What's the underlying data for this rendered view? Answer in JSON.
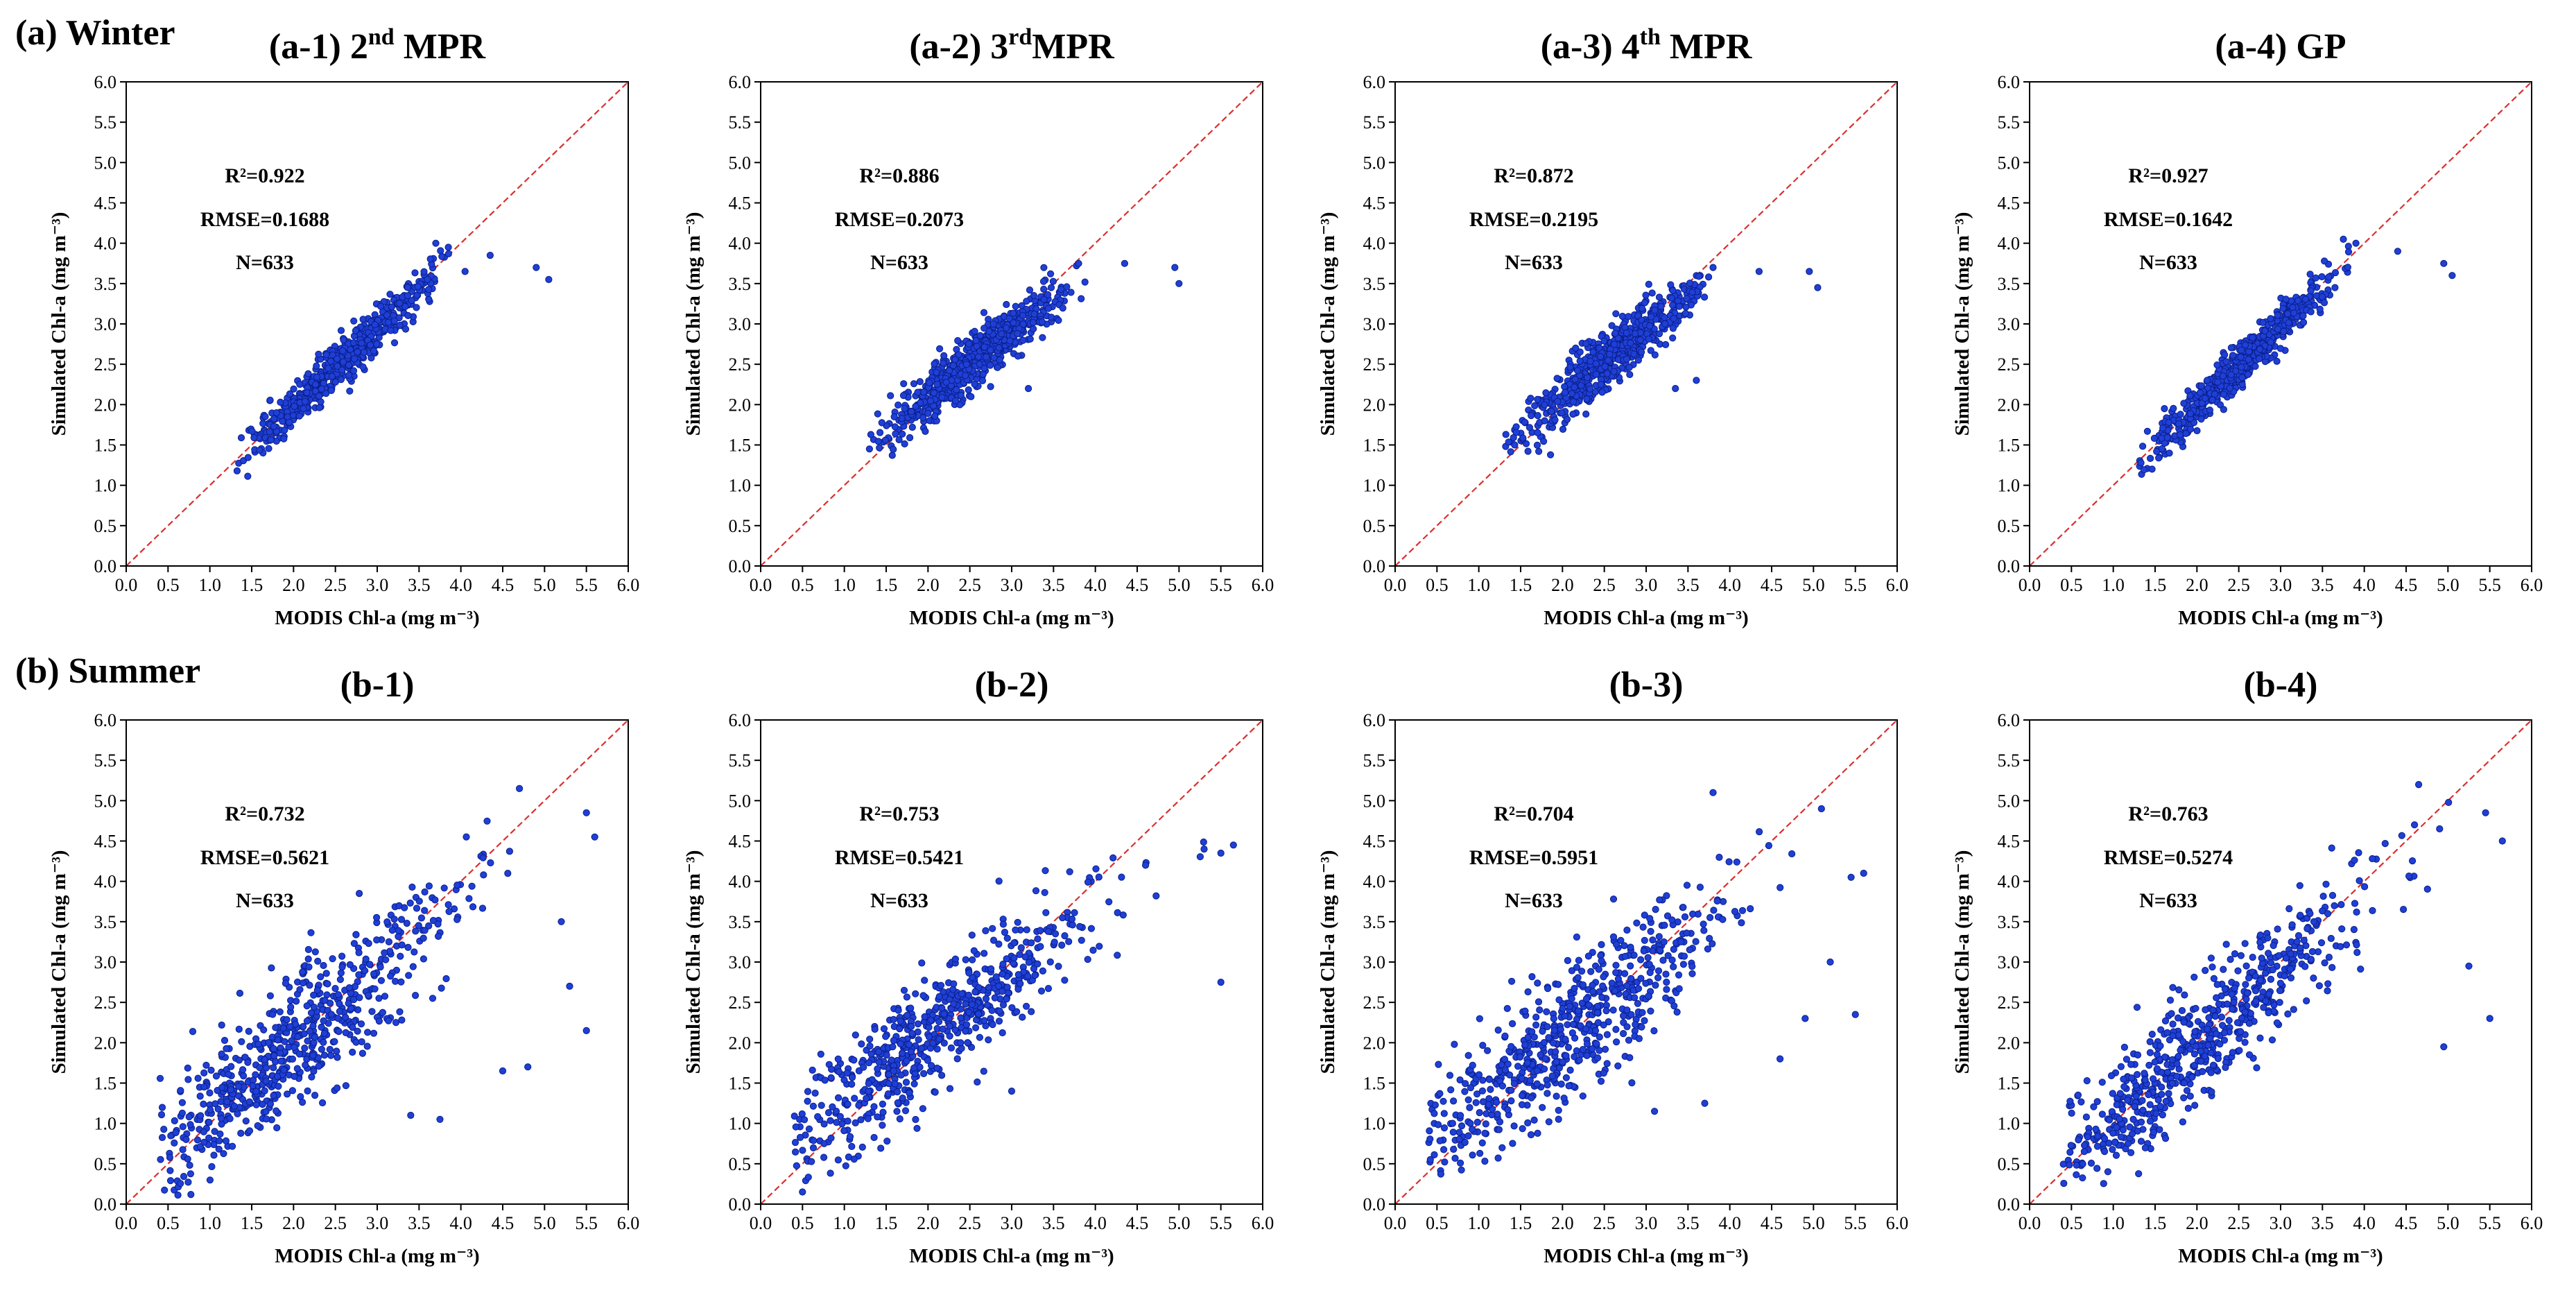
{
  "figure": {
    "rows": [
      {
        "label": "(a) Winter"
      },
      {
        "label": "(b) Summer"
      }
    ],
    "point_color": "#1f3fd6",
    "point_edge_color": "#0a1f8a",
    "line_color": "#d93030"
  },
  "chart_data": [
    {
      "type": "scatter",
      "title": "(a-1) 2nd MPR",
      "title_base": "(a-1) 2",
      "title_sup": "nd",
      "title_tail": " MPR",
      "xlabel": "MODIS Chl-a (mg m⁻³)",
      "ylabel": "Simulated Chl-a (mg m⁻³)",
      "xlim": [
        0,
        6
      ],
      "ylim": [
        0,
        6
      ],
      "ticks": [
        "0.0",
        "0.5",
        "1.0",
        "1.5",
        "2.0",
        "2.5",
        "3.0",
        "3.5",
        "4.0",
        "4.5",
        "5.0",
        "5.5",
        "6.0"
      ],
      "stats": {
        "r2": "R²=0.922",
        "rmse": "RMSE=0.1688",
        "n": "N=633"
      },
      "reference_line": [
        [
          0,
          0
        ],
        [
          6,
          6
        ]
      ],
      "n_points": 633,
      "dist": {
        "x_min": 1.3,
        "x_max": 3.9,
        "x_mean": 2.55,
        "x_sd": 0.55,
        "slope": 0.96,
        "intercept": 0.06,
        "noise": 0.14,
        "y_min": 1.05,
        "y_max": 4.05
      },
      "outliers": [
        [
          4.9,
          3.7
        ],
        [
          5.05,
          3.55
        ],
        [
          4.35,
          3.85
        ],
        [
          3.7,
          4.0
        ],
        [
          3.85,
          3.95
        ],
        [
          3.6,
          3.55
        ],
        [
          4.05,
          3.65
        ]
      ]
    },
    {
      "type": "scatter",
      "title": "(a-2) 3rdMPR",
      "title_base": "(a-2) 3",
      "title_sup": "rd",
      "title_tail": "MPR",
      "xlabel": "MODIS Chl-a (mg m⁻³)",
      "ylabel": "Simulated Chl-a (mg m⁻³)",
      "xlim": [
        0,
        6
      ],
      "ylim": [
        0,
        6
      ],
      "ticks": [
        "0.0",
        "0.5",
        "1.0",
        "1.5",
        "2.0",
        "2.5",
        "3.0",
        "3.5",
        "4.0",
        "4.5",
        "5.0",
        "5.5",
        "6.0"
      ],
      "stats": {
        "r2": "R²=0.886",
        "rmse": "RMSE=0.2073",
        "n": "N=633"
      },
      "reference_line": [
        [
          0,
          0
        ],
        [
          6,
          6
        ]
      ],
      "n_points": 633,
      "dist": {
        "x_min": 1.3,
        "x_max": 3.9,
        "x_mean": 2.55,
        "x_sd": 0.55,
        "slope": 0.82,
        "intercept": 0.45,
        "noise": 0.17,
        "y_min": 1.35,
        "y_max": 3.8
      },
      "outliers": [
        [
          4.35,
          3.75
        ],
        [
          4.95,
          3.7
        ],
        [
          5.0,
          3.5
        ],
        [
          3.8,
          3.75
        ],
        [
          3.2,
          2.2
        ],
        [
          1.3,
          1.45
        ]
      ]
    },
    {
      "type": "scatter",
      "title": "(a-3) 4th MPR",
      "title_base": "(a-3) 4",
      "title_sup": "th",
      "title_tail": " MPR",
      "xlabel": "MODIS Chl-a (mg m⁻³)",
      "ylabel": "Simulated Chl-a (mg m⁻³)",
      "xlim": [
        0,
        6
      ],
      "ylim": [
        0,
        6
      ],
      "ticks": [
        "0.0",
        "0.5",
        "1.0",
        "1.5",
        "2.0",
        "2.5",
        "3.0",
        "3.5",
        "4.0",
        "4.5",
        "5.0",
        "5.5",
        "6.0"
      ],
      "stats": {
        "r2": "R²=0.872",
        "rmse": "RMSE=0.2195",
        "n": "N=633"
      },
      "reference_line": [
        [
          0,
          0
        ],
        [
          6,
          6
        ]
      ],
      "n_points": 633,
      "dist": {
        "x_min": 1.3,
        "x_max": 3.9,
        "x_mean": 2.55,
        "x_sd": 0.55,
        "slope": 0.83,
        "intercept": 0.45,
        "noise": 0.18,
        "y_min": 1.35,
        "y_max": 3.8
      },
      "outliers": [
        [
          4.35,
          3.65
        ],
        [
          4.95,
          3.65
        ],
        [
          5.05,
          3.45
        ],
        [
          3.8,
          3.7
        ],
        [
          3.6,
          2.3
        ],
        [
          3.35,
          2.2
        ]
      ]
    },
    {
      "type": "scatter",
      "title": "(a-4) GP",
      "title_base": "(a-4) GP",
      "title_sup": "",
      "title_tail": "",
      "xlabel": "MODIS Chl-a (mg m⁻³)",
      "ylabel": "Simulated Chl-a (mg m⁻³)",
      "xlim": [
        0,
        6
      ],
      "ylim": [
        0,
        6
      ],
      "ticks": [
        "0.0",
        "0.5",
        "1.0",
        "1.5",
        "2.0",
        "2.5",
        "3.0",
        "3.5",
        "4.0",
        "4.5",
        "5.0",
        "5.5",
        "6.0"
      ],
      "stats": {
        "r2": "R²=0.927",
        "rmse": "RMSE=0.1642",
        "n": "N=633"
      },
      "reference_line": [
        [
          0,
          0
        ],
        [
          6,
          6
        ]
      ],
      "n_points": 633,
      "dist": {
        "x_min": 1.3,
        "x_max": 3.9,
        "x_mean": 2.55,
        "x_sd": 0.55,
        "slope": 0.97,
        "intercept": 0.05,
        "noise": 0.13,
        "y_min": 1.1,
        "y_max": 4.1
      },
      "outliers": [
        [
          4.95,
          3.75
        ],
        [
          5.05,
          3.6
        ],
        [
          4.4,
          3.9
        ],
        [
          3.75,
          4.05
        ],
        [
          3.9,
          4.0
        ],
        [
          3.65,
          3.45
        ]
      ]
    },
    {
      "type": "scatter",
      "title": "(b-1)",
      "title_base": "(b-1)",
      "title_sup": "",
      "title_tail": "",
      "xlabel": "MODIS Chl-a (mg m⁻³)",
      "ylabel": "Simulated Chl-a (mg m⁻³)",
      "xlim": [
        0,
        6
      ],
      "ylim": [
        0,
        6
      ],
      "ticks": [
        "0.0",
        "0.5",
        "1.0",
        "1.5",
        "2.0",
        "2.5",
        "3.0",
        "3.5",
        "4.0",
        "4.5",
        "5.0",
        "5.5",
        "6.0"
      ],
      "stats": {
        "r2": "R²=0.732",
        "rmse": "RMSE=0.5621",
        "n": "N=633"
      },
      "reference_line": [
        [
          0,
          0
        ],
        [
          6,
          6
        ]
      ],
      "n_points": 633,
      "dist": {
        "x_min": 0.4,
        "x_max": 5.6,
        "x_mean": 2.0,
        "x_sd": 1.0,
        "slope": 0.9,
        "intercept": 0.18,
        "noise": 0.42,
        "y_min": 0.1,
        "y_max": 5.1
      },
      "outliers": [
        [
          4.7,
          5.15
        ],
        [
          5.5,
          4.85
        ],
        [
          5.6,
          4.55
        ],
        [
          5.3,
          2.7
        ],
        [
          5.5,
          2.15
        ],
        [
          4.8,
          1.7
        ],
        [
          4.5,
          1.65
        ],
        [
          3.75,
          1.05
        ],
        [
          3.4,
          1.1
        ],
        [
          5.2,
          3.5
        ]
      ]
    },
    {
      "type": "scatter",
      "title": "(b-2)",
      "title_base": "(b-2)",
      "title_sup": "",
      "title_tail": "",
      "xlabel": "MODIS Chl-a (mg m⁻³)",
      "ylabel": "Simulated Chl-a (mg m⁻³)",
      "xlim": [
        0,
        6
      ],
      "ylim": [
        0,
        6
      ],
      "ticks": [
        "0.0",
        "0.5",
        "1.0",
        "1.5",
        "2.0",
        "2.5",
        "3.0",
        "3.5",
        "4.0",
        "4.5",
        "5.0",
        "5.5",
        "6.0"
      ],
      "stats": {
        "r2": "R²=0.753",
        "rmse": "RMSE=0.5421",
        "n": "N=633"
      },
      "reference_line": [
        [
          0,
          0
        ],
        [
          6,
          6
        ]
      ],
      "n_points": 633,
      "dist": {
        "x_min": 0.4,
        "x_max": 5.6,
        "x_mean": 2.0,
        "x_sd": 1.0,
        "slope": 0.78,
        "intercept": 0.5,
        "noise": 0.38,
        "y_min": 0.2,
        "y_max": 4.5
      },
      "outliers": [
        [
          5.3,
          4.4
        ],
        [
          5.5,
          4.35
        ],
        [
          5.65,
          4.45
        ],
        [
          5.5,
          2.75
        ],
        [
          4.6,
          4.2
        ],
        [
          3.0,
          1.4
        ],
        [
          0.5,
          0.15
        ]
      ]
    },
    {
      "type": "scatter",
      "title": "(b-3)",
      "title_base": "(b-3)",
      "title_sup": "",
      "title_tail": "",
      "xlabel": "MODIS Chl-a (mg m⁻³)",
      "ylabel": "Simulated Chl-a (mg m⁻³)",
      "xlim": [
        0,
        6
      ],
      "ylim": [
        0,
        6
      ],
      "ticks": [
        "0.0",
        "0.5",
        "1.0",
        "1.5",
        "2.0",
        "2.5",
        "3.0",
        "3.5",
        "4.0",
        "4.5",
        "5.0",
        "5.5",
        "6.0"
      ],
      "stats": {
        "r2": "R²=0.704",
        "rmse": "RMSE=0.5951",
        "n": "N=633"
      },
      "reference_line": [
        [
          0,
          0
        ],
        [
          6,
          6
        ]
      ],
      "n_points": 633,
      "dist": {
        "x_min": 0.4,
        "x_max": 5.6,
        "x_mean": 2.0,
        "x_sd": 1.0,
        "slope": 0.8,
        "intercept": 0.45,
        "noise": 0.42,
        "y_min": 0.3,
        "y_max": 5.1
      },
      "outliers": [
        [
          3.8,
          5.1
        ],
        [
          5.45,
          4.05
        ],
        [
          5.6,
          4.1
        ],
        [
          5.5,
          2.35
        ],
        [
          5.2,
          3.0
        ],
        [
          4.9,
          2.3
        ],
        [
          4.6,
          1.8
        ],
        [
          3.7,
          1.25
        ],
        [
          3.1,
          1.15
        ]
      ]
    },
    {
      "type": "scatter",
      "title": "(b-4)",
      "title_base": "(b-4)",
      "title_sup": "",
      "title_tail": "",
      "xlabel": "MODIS Chl-a (mg m⁻³)",
      "ylabel": "Simulated Chl-a (mg m⁻³)",
      "xlim": [
        0,
        6
      ],
      "ylim": [
        0,
        6
      ],
      "ticks": [
        "0.0",
        "0.5",
        "1.0",
        "1.5",
        "2.0",
        "2.5",
        "3.0",
        "3.5",
        "4.0",
        "4.5",
        "5.0",
        "5.5",
        "6.0"
      ],
      "stats": {
        "r2": "R²=0.763",
        "rmse": "RMSE=0.5274",
        "n": "N=633"
      },
      "reference_line": [
        [
          0,
          0
        ],
        [
          6,
          6
        ]
      ],
      "n_points": 633,
      "dist": {
        "x_min": 0.4,
        "x_max": 5.6,
        "x_mean": 2.0,
        "x_sd": 1.0,
        "slope": 0.92,
        "intercept": 0.12,
        "noise": 0.38,
        "y_min": 0.25,
        "y_max": 5.2
      },
      "outliers": [
        [
          4.65,
          5.2
        ],
        [
          5.45,
          4.85
        ],
        [
          5.65,
          4.5
        ],
        [
          5.25,
          2.95
        ],
        [
          5.5,
          2.3
        ],
        [
          4.95,
          1.95
        ],
        [
          4.6,
          4.7
        ],
        [
          4.9,
          4.65
        ]
      ]
    }
  ]
}
